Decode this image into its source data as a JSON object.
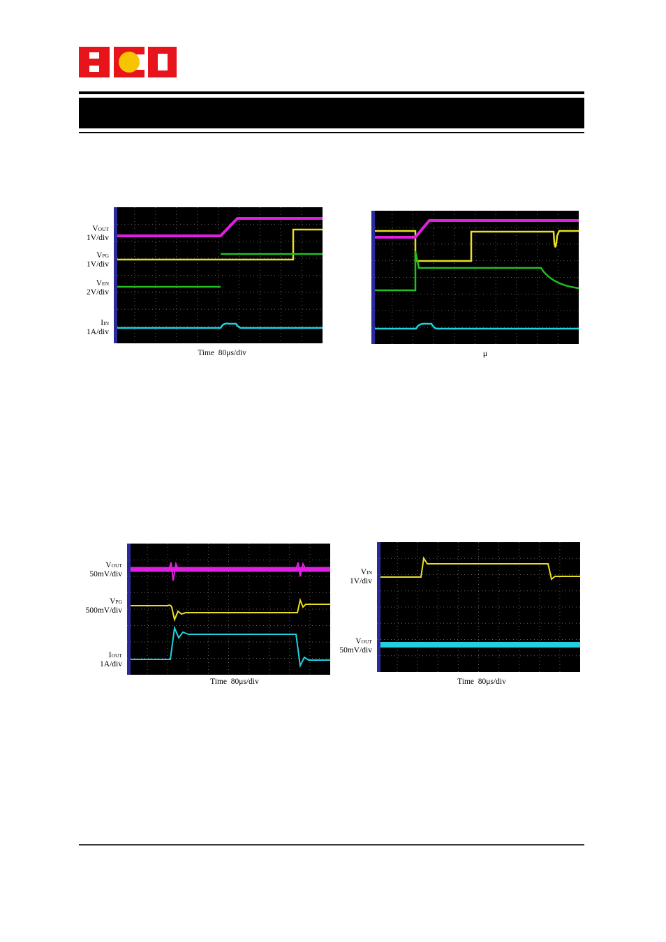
{
  "figures": [
    {
      "labels": [
        {
          "main": "V",
          "sub": "OUT",
          "scale": "1V/div"
        },
        {
          "main": "V",
          "sub": "PG",
          "scale": "1V/div"
        },
        {
          "main": "V",
          "sub": "EN",
          "scale": "2V/div"
        },
        {
          "main": "I",
          "sub": "IN",
          "scale": "1A/div"
        }
      ],
      "caption": "Time  80μs/div"
    },
    {
      "labels": [],
      "caption": "μ"
    },
    {
      "labels": [
        {
          "main": "V",
          "sub": "OUT",
          "scale": "50mV/div"
        },
        {
          "main": "V",
          "sub": "PG",
          "scale": "500mV/div"
        },
        {
          "main": "I",
          "sub": "OUT",
          "scale": "1A/div"
        }
      ],
      "caption": "Time  80μs/div"
    },
    {
      "labels": [
        {
          "main": "V",
          "sub": "IN",
          "scale": "1V/div"
        },
        {
          "main": "V",
          "sub": "OUT",
          "scale": "50mV/div"
        }
      ],
      "caption": "Time  80μs/div"
    }
  ]
}
